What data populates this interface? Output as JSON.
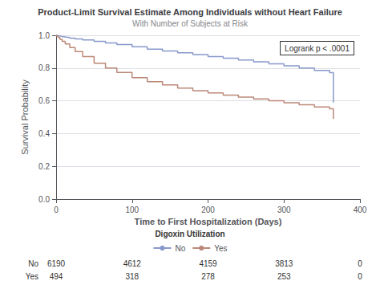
{
  "chart_data": {
    "type": "step",
    "title": "Product-Limit Survival Estimate Among Individuals without Heart Failure",
    "subtitle": "With Number of Subjects at Risk",
    "xlabel": "Time to First Hospitalization (Days)",
    "ylabel": "Survival Probability",
    "annotation": "Logrank p < .0001",
    "xlim": [
      0,
      400
    ],
    "ylim": [
      0.0,
      1.0
    ],
    "xticks": [
      0,
      100,
      200,
      300,
      400
    ],
    "yticks": [
      {
        "value": 0,
        "label": "0.0"
      },
      0.2,
      0.4,
      0.6,
      0.8,
      {
        "value": 1,
        "label": "1.0"
      }
    ],
    "grid": true,
    "legend": "bottom",
    "legend_title": "Digoxin Utilization",
    "x": [
      0,
      1,
      3,
      5,
      8,
      12,
      18,
      25,
      35,
      50,
      65,
      80,
      100,
      120,
      140,
      160,
      180,
      200,
      220,
      240,
      260,
      280,
      300,
      320,
      340,
      360,
      365
    ],
    "series": [
      {
        "name": "No",
        "color": "#8899CC",
        "values": [
          1.0,
          0.998,
          0.996,
          0.993,
          0.99,
          0.987,
          0.983,
          0.978,
          0.972,
          0.963,
          0.954,
          0.944,
          0.93,
          0.916,
          0.904,
          0.893,
          0.882,
          0.87,
          0.86,
          0.849,
          0.838,
          0.826,
          0.814,
          0.8,
          0.786,
          0.772,
          0.59
        ]
      },
      {
        "name": "Yes",
        "color": "#BB8877",
        "values": [
          1.0,
          0.994,
          0.986,
          0.976,
          0.963,
          0.947,
          0.925,
          0.901,
          0.87,
          0.83,
          0.8,
          0.773,
          0.742,
          0.717,
          0.697,
          0.678,
          0.662,
          0.648,
          0.635,
          0.623,
          0.612,
          0.6,
          0.588,
          0.576,
          0.563,
          0.551,
          0.49
        ]
      }
    ],
    "risk_table": {
      "times": [
        0,
        100,
        200,
        300,
        400
      ],
      "rows": [
        {
          "name": "No",
          "values": [
            6190,
            4612,
            4159,
            3813,
            0
          ]
        },
        {
          "name": "Yes",
          "values": [
            494,
            318,
            278,
            253,
            0
          ]
        }
      ]
    }
  }
}
